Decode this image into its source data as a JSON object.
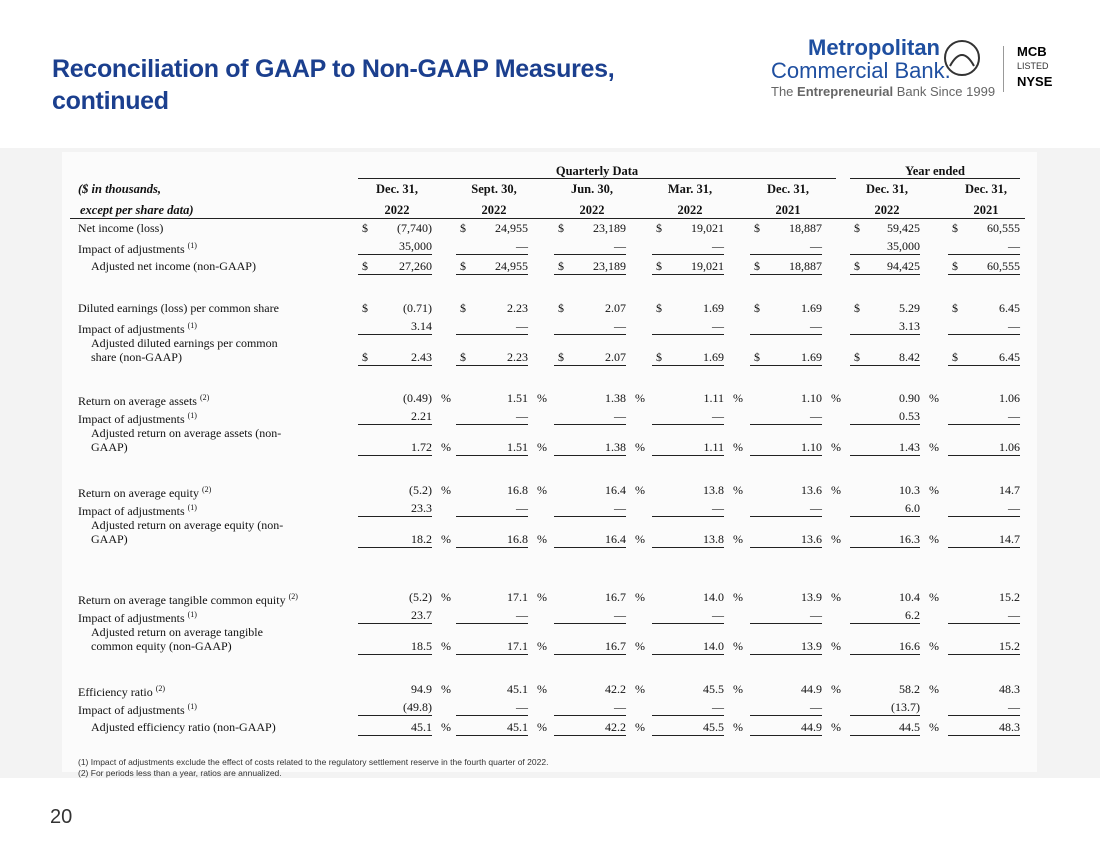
{
  "header": {
    "title": [
      "Reconciliation of GAAP to Non-GAAP Measures,",
      "continued"
    ],
    "logo": {
      "line1": "Metropolitan",
      "line2": "Commercial Bank.",
      "tagline": [
        "The",
        "Entrepreneurial",
        "Bank Since 1999"
      ],
      "badge": [
        "MCB",
        "LISTED",
        "NYSE"
      ]
    }
  },
  "table": {
    "group_headers": [
      "Quarterly Data",
      "Year ended"
    ],
    "label_header": [
      "($ in thousands,",
      "except per share data)"
    ],
    "columns": [
      [
        "Dec. 31,",
        "2022"
      ],
      [
        "Sept. 30,",
        "2022"
      ],
      [
        "Jun. 30,",
        "2022"
      ],
      [
        "Mar. 31,",
        "2022"
      ],
      [
        "Dec. 31,",
        "2021"
      ],
      [
        "Dec. 31,",
        "2022"
      ],
      [
        "Dec. 31,",
        "2021"
      ]
    ],
    "sections": [
      {
        "rows": [
          {
            "label": [
              "Net income (loss)"
            ],
            "prefix": "$",
            "cells": [
              "(7,740)",
              "24,955",
              "23,189",
              "19,021",
              "18,887",
              "59,425",
              "60,555"
            ]
          },
          {
            "label": [
              "Impact of adjustments"
            ],
            "note": "(1)",
            "cells": [
              "35,000",
              "—",
              "—",
              "—",
              "—",
              "35,000",
              "—"
            ]
          },
          {
            "label": [
              "Adjusted net income (non-GAAP)"
            ],
            "prefix": "$",
            "cells": [
              "27,260",
              "24,955",
              "23,189",
              "19,021",
              "18,887",
              "94,425",
              "60,555"
            ]
          }
        ]
      },
      {
        "rows": [
          {
            "label": [
              "Diluted earnings (loss) per common share"
            ],
            "prefix": "$",
            "cells": [
              "(0.71)",
              "2.23",
              "2.07",
              "1.69",
              "1.69",
              "5.29",
              "6.45"
            ]
          },
          {
            "label": [
              "Impact of adjustments"
            ],
            "note": "(1)",
            "cells": [
              "3.14",
              "—",
              "—",
              "—",
              "—",
              "3.13",
              "—"
            ]
          },
          {
            "label": [
              "Adjusted diluted earnings per common",
              "share (non-GAAP)"
            ],
            "prefix": "$",
            "cells": [
              "2.43",
              "2.23",
              "2.07",
              "1.69",
              "1.69",
              "8.42",
              "6.45"
            ]
          }
        ]
      },
      {
        "rows": [
          {
            "label": [
              "Return on average assets"
            ],
            "note": "(2)",
            "suffixes": [
              "%",
              "%",
              "%",
              "%",
              "%",
              "%",
              null
            ],
            "cells": [
              "(0.49)",
              "1.51",
              "1.38",
              "1.11",
              "1.10",
              "0.90",
              "1.06"
            ]
          },
          {
            "label": [
              "Impact of adjustments"
            ],
            "note": "(1)",
            "cells": [
              "2.21",
              "—",
              "—",
              "—",
              "—",
              "0.53",
              "—"
            ]
          },
          {
            "label": [
              "Adjusted return on average assets (non-",
              "GAAP)"
            ],
            "suffixes": [
              "%",
              "%",
              "%",
              "%",
              "%",
              "%",
              null
            ],
            "cells": [
              "1.72",
              "1.51",
              "1.38",
              "1.11",
              "1.10",
              "1.43",
              "1.06"
            ]
          }
        ]
      },
      {
        "rows": [
          {
            "label": [
              "Return on average equity"
            ],
            "note": "(2)",
            "suffixes": [
              "%",
              "%",
              "%",
              "%",
              "%",
              "%",
              null
            ],
            "cells": [
              "(5.2)",
              "16.8",
              "16.4",
              "13.8",
              "13.6",
              "10.3",
              "14.7"
            ]
          },
          {
            "label": [
              "Impact of adjustments"
            ],
            "note": "(1)",
            "cells": [
              "23.3",
              "—",
              "—",
              "—",
              "—",
              "6.0",
              "—"
            ]
          },
          {
            "label": [
              "Adjusted return on average equity (non-",
              "GAAP)"
            ],
            "suffixes": [
              "%",
              "%",
              "%",
              "%",
              "%",
              "%",
              null
            ],
            "cells": [
              "18.2",
              "16.8",
              "16.4",
              "13.8",
              "13.6",
              "16.3",
              "14.7"
            ]
          }
        ]
      },
      {
        "rows": [
          {
            "label": [
              "Return on average tangible common equity"
            ],
            "note": "(2)",
            "suffixes": [
              "%",
              "%",
              "%",
              "%",
              "%",
              "%",
              null
            ],
            "cells": [
              "(5.2)",
              "17.1",
              "16.7",
              "14.0",
              "13.9",
              "10.4",
              "15.2"
            ]
          },
          {
            "label": [
              "Impact of adjustments"
            ],
            "note": "(1)",
            "cells": [
              "23.7",
              "—",
              "—",
              "—",
              "—",
              "6.2",
              "—"
            ]
          },
          {
            "label": [
              "Adjusted return on average tangible",
              "common equity (non-GAAP)"
            ],
            "suffixes": [
              "%",
              "%",
              "%",
              "%",
              "%",
              "%",
              null
            ],
            "cells": [
              "18.5",
              "17.1",
              "16.7",
              "14.0",
              "13.9",
              "16.6",
              "15.2"
            ]
          }
        ]
      },
      {
        "rows": [
          {
            "label": [
              "Efficiency ratio"
            ],
            "note": "(2)",
            "suffixes": [
              "%",
              "%",
              "%",
              "%",
              "%",
              "%",
              null
            ],
            "cells": [
              "94.9",
              "45.1",
              "42.2",
              "45.5",
              "44.9",
              "58.2",
              "48.3"
            ]
          },
          {
            "label": [
              "Impact of adjustments"
            ],
            "note": "(1)",
            "cells": [
              "(49.8)",
              "—",
              "—",
              "—",
              "—",
              "(13.7)",
              "—"
            ]
          },
          {
            "label": [
              "Adjusted efficiency ratio (non-GAAP)"
            ],
            "suffixes": [
              "%",
              "%",
              "%",
              "%",
              "%",
              "%",
              null
            ],
            "cells": [
              "45.1",
              "45.1",
              "42.2",
              "45.5",
              "44.9",
              "44.5",
              "48.3"
            ]
          }
        ]
      }
    ]
  },
  "footnotes": [
    "(1) Impact of adjustments exclude the effect of costs related to the regulatory settlement reserve in the fourth quarter of 2022.",
    "(2) For periods less than a year, ratios are annualized."
  ],
  "page_number": "20"
}
